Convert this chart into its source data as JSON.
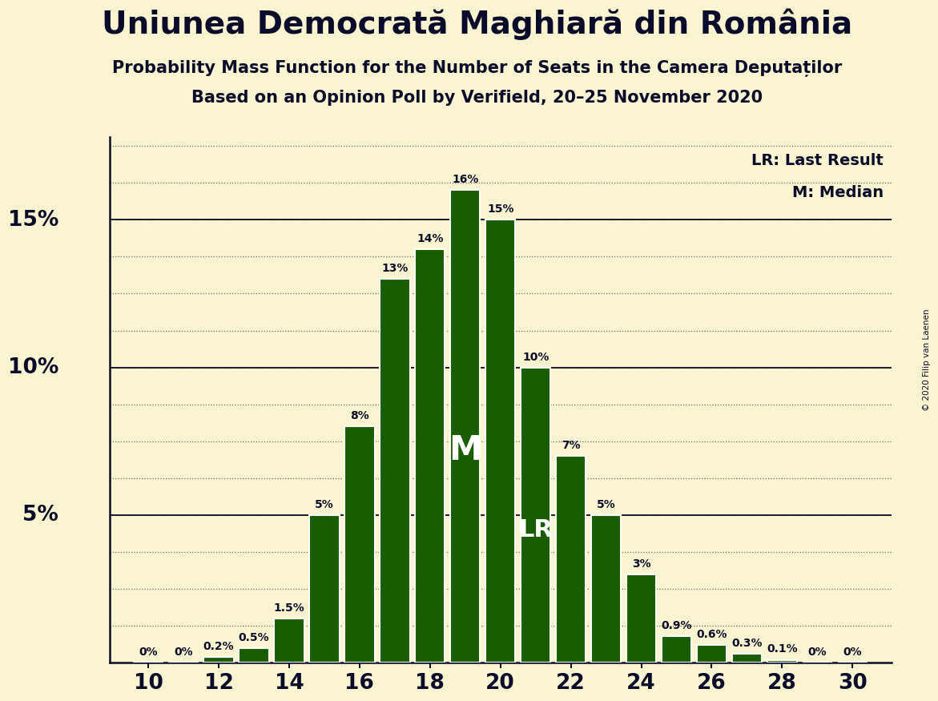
{
  "title": "Uniunea Democrată Maghiară din România",
  "subtitle1": "Probability Mass Function for the Number of Seats in the Camera Deputaților",
  "subtitle2": "Based on an Opinion Poll by Verifield, 20–25 November 2020",
  "copyright": "© 2020 Filip van Laenen",
  "seats": [
    10,
    11,
    12,
    13,
    14,
    15,
    16,
    17,
    18,
    19,
    20,
    21,
    22,
    23,
    24,
    25,
    26,
    27,
    28,
    29,
    30
  ],
  "probabilities": [
    0.0,
    0.0,
    0.2,
    0.5,
    1.5,
    5.0,
    8.0,
    13.0,
    14.0,
    16.0,
    15.0,
    10.0,
    7.0,
    5.0,
    3.0,
    0.9,
    0.6,
    0.3,
    0.1,
    0.0,
    0.0
  ],
  "labels": [
    "0%",
    "0%",
    "0.2%",
    "0.5%",
    "1.5%",
    "5%",
    "8%",
    "13%",
    "14%",
    "16%",
    "15%",
    "10%",
    "7%",
    "5%",
    "3%",
    "0.9%",
    "0.6%",
    "0.3%",
    "0.1%",
    "0%",
    "0%"
  ],
  "bar_color": "#1a5c00",
  "bg_color": "#faf5d0",
  "text_color": "#0a0a2a",
  "median_seat": 19,
  "lr_seat": 21,
  "legend_lr": "LR: Last Result",
  "legend_m": "M: Median",
  "xticks": [
    10,
    12,
    14,
    16,
    18,
    20,
    22,
    24,
    26,
    28,
    30
  ],
  "ylim": [
    0,
    17.8
  ],
  "solid_lines": [
    5,
    10,
    15
  ],
  "dotted_line_step": 1.25,
  "ylabel_vals": [
    5,
    10,
    15
  ]
}
